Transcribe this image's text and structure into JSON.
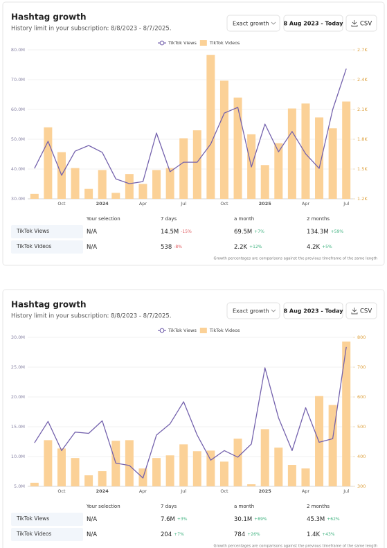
{
  "chart_data": [
    {
      "type": "combo",
      "title": "Hashtag growth",
      "subtitle": "History limit in your subscription: 8/8/2023 - 8/7/2025.",
      "categories": [
        null,
        null,
        "Oct",
        null,
        null,
        "2024",
        null,
        null,
        "Apr",
        null,
        null,
        "Jul",
        null,
        null,
        "Oct",
        null,
        null,
        "2025",
        null,
        null,
        "Apr",
        null,
        null,
        "Jul"
      ],
      "series": [
        {
          "name": "TikTok Views",
          "type": "line",
          "axis": "y",
          "color": "#7462ad",
          "values": [
            40.2,
            49.3,
            37.9,
            46.0,
            47.9,
            45.6,
            36.7,
            35.1,
            35.8,
            52.1,
            39.1,
            42.3,
            42.3,
            48.4,
            58.8,
            60.7,
            40.7,
            55.1,
            45.8,
            52.6,
            45.1,
            40.2,
            60.0,
            73.7
          ]
        },
        {
          "name": "TikTok Videos",
          "type": "bar",
          "axis": "y2",
          "color": "#fbd197",
          "values": [
            1.25,
            1.92,
            1.67,
            1.51,
            1.3,
            1.49,
            1.26,
            1.45,
            1.35,
            1.49,
            1.51,
            1.81,
            1.89,
            2.65,
            2.39,
            2.22,
            1.85,
            1.54,
            1.76,
            2.11,
            2.16,
            2.02,
            1.91,
            2.18
          ]
        }
      ],
      "ylim": [
        30,
        80
      ],
      "yticks": [
        {
          "value": 30,
          "label": "30.0M"
        },
        {
          "value": 40,
          "label": "40.0M"
        },
        {
          "value": 50,
          "label": "50.0M"
        },
        {
          "value": 60,
          "label": "60.0M"
        },
        {
          "value": 70,
          "label": "70.0M"
        },
        {
          "value": 80,
          "label": "80.0M"
        }
      ],
      "y2lim": [
        1.2,
        2.7
      ],
      "y2ticks": [
        {
          "value": 1.2,
          "label": "1.2K"
        },
        {
          "value": 1.5,
          "label": "1.5K"
        },
        {
          "value": 1.8,
          "label": "1.8K"
        },
        {
          "value": 2.1,
          "label": "2.1K"
        },
        {
          "value": 2.4,
          "label": "2.4K"
        },
        {
          "value": 2.7,
          "label": "2.7K"
        }
      ],
      "grid": true,
      "legend": "top"
    },
    {
      "type": "combo",
      "title": "Hashtag growth",
      "subtitle": "History limit in your subscription: 8/8/2023 - 8/7/2025.",
      "categories": [
        null,
        null,
        "Oct",
        null,
        null,
        "2024",
        null,
        null,
        "Apr",
        null,
        null,
        "Jul",
        null,
        null,
        "Oct",
        null,
        null,
        "2025",
        null,
        null,
        "Apr",
        null,
        null,
        "Jul"
      ],
      "series": [
        {
          "name": "TikTok Views",
          "type": "line",
          "axis": "y",
          "color": "#7462ad",
          "values": [
            12.3,
            15.9,
            11.0,
            14.1,
            13.9,
            16.0,
            8.9,
            8.5,
            6.4,
            13.6,
            15.5,
            19.2,
            13.6,
            9.4,
            11.0,
            9.9,
            12.1,
            24.9,
            16.5,
            11.0,
            18.2,
            12.4,
            13.0,
            28.4
          ]
        },
        {
          "name": "TikTok Videos",
          "type": "bar",
          "axis": "y2",
          "color": "#fbd197",
          "values": [
            312,
            455,
            427,
            395,
            337,
            351,
            453,
            455,
            360,
            395,
            404,
            441,
            418,
            420,
            383,
            460,
            307,
            492,
            430,
            372,
            360,
            603,
            573,
            786
          ]
        }
      ],
      "ylim": [
        5,
        30
      ],
      "yticks": [
        {
          "value": 5,
          "label": "5.0M"
        },
        {
          "value": 10,
          "label": "10.0M"
        },
        {
          "value": 15,
          "label": "15.0M"
        },
        {
          "value": 20,
          "label": "20.0M"
        },
        {
          "value": 25,
          "label": "25.0M"
        },
        {
          "value": 30,
          "label": "30.0M"
        }
      ],
      "y2lim": [
        300,
        800
      ],
      "y2ticks": [
        300,
        400,
        500,
        600,
        700,
        800
      ],
      "grid": true,
      "legend": "top"
    }
  ],
  "panels": [
    {
      "controls": [
        "Exact growth",
        "8 Aug 2023 - Today",
        "CSV"
      ],
      "table": {
        "header": [
          "Your selection",
          "7 days",
          "a month",
          "2 months"
        ],
        "rows": [
          {
            "name": "TikTok Views",
            "cells": [
              {
                "value": "N/A"
              },
              {
                "value": "14.5M",
                "change": "-15%"
              },
              {
                "value": "69.5M",
                "change": "+7%"
              },
              {
                "value": "134.3M",
                "change": "+59%"
              }
            ]
          },
          {
            "name": "TikTok Videos",
            "cells": [
              {
                "value": "N/A"
              },
              {
                "value": "538",
                "change": "-8%"
              },
              {
                "value": "2.2K",
                "change": "+12%"
              },
              {
                "value": "4.2K",
                "change": "+5%"
              }
            ]
          }
        ]
      },
      "footnote": "Growth percentages are comparisons against the previous timeframe of the same length"
    },
    {
      "controls": [
        "Exact growth",
        "8 Aug 2023 - Today",
        "CSV"
      ],
      "table": {
        "header": [
          "Your selection",
          "7 days",
          "a month",
          "2 months"
        ],
        "rows": [
          {
            "name": "TikTok Views",
            "cells": [
              {
                "value": "N/A"
              },
              {
                "value": "7.6M",
                "change": "+3%"
              },
              {
                "value": "30.1M",
                "change": "+89%"
              },
              {
                "value": "45.3M",
                "change": "+62%"
              }
            ]
          },
          {
            "name": "TikTok Videos",
            "cells": [
              {
                "value": "N/A"
              },
              {
                "value": "204",
                "change": "+7%"
              },
              {
                "value": "784",
                "change": "+26%"
              },
              {
                "value": "1.4K",
                "change": "+43%"
              }
            ]
          }
        ]
      },
      "footnote": "Growth percentages are comparisons against the previous timeframe of the same length"
    }
  ]
}
